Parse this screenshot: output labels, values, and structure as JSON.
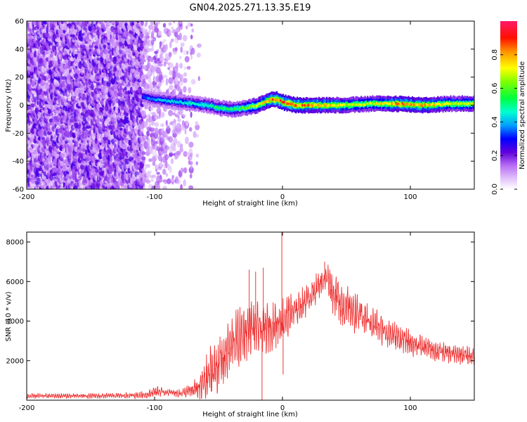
{
  "title": "GN04.2025.271.13.35.E19",
  "chart_data": [
    {
      "type": "heatmap",
      "title": "GN04.2025.271.13.35.E19",
      "xlabel": "Height of straight line (km)",
      "ylabel": "Frequency (Hz)",
      "xlim": [
        -200,
        150
      ],
      "ylim": [
        -60,
        60
      ],
      "x_ticks": [
        -200,
        -100,
        0,
        100
      ],
      "y_ticks": [
        -60,
        -40,
        -20,
        0,
        20,
        40,
        60
      ],
      "colorbar": {
        "label": "Normalized spectral amplitude",
        "range": [
          0,
          1
        ],
        "ticks": [
          0.0,
          0.2,
          0.4,
          0.6,
          0.8
        ],
        "colors": [
          "#ffffff",
          "#e3c6fb",
          "#9b2ff4",
          "#5a00d9",
          "#0000ff",
          "#00c8ff",
          "#00ff80",
          "#40ff00",
          "#ffff00",
          "#ff8000",
          "#ff0000",
          "#ff1060"
        ]
      },
      "noise_region_km": [
        -200,
        -65
      ],
      "signal_start_km": -110,
      "ridge": {
        "x": [
          -110,
          -100,
          -90,
          -80,
          -70,
          -60,
          -50,
          -40,
          -30,
          -20,
          -10,
          -5,
          0,
          10,
          30,
          50,
          70,
          90,
          110,
          130,
          150
        ],
        "frequency_hz": [
          6,
          4,
          3,
          2,
          1,
          0,
          -2,
          -3,
          -2,
          0,
          4,
          4,
          2,
          0,
          0,
          0,
          1,
          1,
          0,
          1,
          1
        ],
        "amplitude": [
          0.35,
          0.4,
          0.42,
          0.45,
          0.48,
          0.5,
          0.55,
          0.55,
          0.6,
          0.7,
          0.85,
          0.9,
          0.92,
          0.88,
          0.82,
          0.72,
          0.7,
          0.85,
          0.83,
          0.72,
          0.7
        ]
      }
    },
    {
      "type": "line",
      "xlabel": "Height of straight line (km)",
      "ylabel": "SNR (10 * v/v)",
      "xlim": [
        -200,
        150
      ],
      "ylim": [
        0,
        8500
      ],
      "x_ticks": [
        -200,
        -100,
        0,
        100
      ],
      "y_ticks": [
        2000,
        4000,
        6000,
        8000
      ],
      "color": "#ee3333",
      "series": [
        {
          "name": "SNR",
          "x": [
            -200,
            -180,
            -160,
            -140,
            -120,
            -105,
            -100,
            -90,
            -80,
            -72,
            -65,
            -60,
            -55,
            -50,
            -45,
            -40,
            -35,
            -30,
            -25,
            -20,
            -15,
            -10,
            -5,
            0,
            5,
            10,
            15,
            20,
            25,
            30,
            35,
            40,
            45,
            50,
            55,
            60,
            70,
            80,
            90,
            100,
            110,
            120,
            130,
            140,
            150
          ],
          "mean": [
            200,
            220,
            210,
            220,
            230,
            280,
            450,
            400,
            350,
            450,
            650,
            1000,
            1500,
            1800,
            2200,
            2800,
            3100,
            3400,
            3700,
            3600,
            3500,
            3700,
            3900,
            4000,
            4300,
            4500,
            4800,
            5200,
            5500,
            6000,
            6200,
            5400,
            5000,
            4700,
            4500,
            4300,
            3900,
            3500,
            3200,
            2900,
            2700,
            2500,
            2350,
            2300,
            2200
          ],
          "amplitude": [
            130,
            130,
            130,
            140,
            150,
            200,
            300,
            200,
            200,
            400,
            800,
            1200,
            1500,
            1500,
            1500,
            1600,
            1500,
            1500,
            1500,
            1400,
            1300,
            1300,
            1300,
            1300,
            1100,
            1000,
            900,
            800,
            800,
            700,
            800,
            1200,
            1300,
            1200,
            1100,
            1000,
            900,
            800,
            700,
            650,
            600,
            550,
            500,
            500,
            500
          ]
        }
      ],
      "spikes": [
        {
          "x": -26,
          "y": 6600
        },
        {
          "x": -21,
          "y": 6500
        },
        {
          "x": -16,
          "y": 0
        },
        {
          "x": -15,
          "y": 6700
        },
        {
          "x": -0.5,
          "y": 8500
        },
        {
          "x": 0.5,
          "y": 1300
        },
        {
          "x": 33,
          "y": 7000
        }
      ]
    }
  ]
}
